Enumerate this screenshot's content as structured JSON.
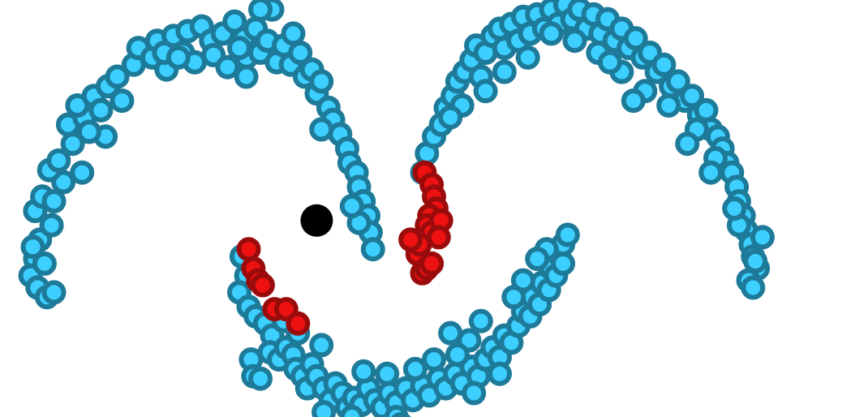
{
  "chart_data": {
    "type": "scatter",
    "title": "",
    "xlabel": "",
    "ylabel": "",
    "xlim": [
      -1.35,
      2.35
    ],
    "ylim": [
      -0.62,
      1.12
    ],
    "grid": false,
    "legend": "none",
    "axes_visible": false,
    "colors": {
      "blue_fill": "#3ccfff",
      "blue_edge": "#1e7a99",
      "red_fill": "#ee1111",
      "red_edge": "#9a0c0c",
      "black": "#000000"
    },
    "series": [
      {
        "role": "unlabeled",
        "points": [
          [
            -1.18,
            0.12
          ],
          [
            -1.2,
            0.04
          ],
          [
            -1.22,
            -0.03
          ],
          [
            -1.19,
            -0.08
          ],
          [
            -1.21,
            0.09
          ],
          [
            -1.16,
            0.02
          ],
          [
            -1.13,
            0.18
          ],
          [
            -1.15,
            -0.12
          ],
          [
            -1.2,
            0.24
          ],
          [
            -1.17,
            0.3
          ],
          [
            -1.12,
            0.28
          ],
          [
            -1.08,
            0.36
          ],
          [
            -1.14,
            0.41
          ],
          [
            -1.1,
            0.45
          ],
          [
            -1.04,
            0.52
          ],
          [
            -1.06,
            0.6
          ],
          [
            -0.99,
            0.63
          ],
          [
            -1.02,
            0.68
          ],
          [
            -0.95,
            0.72
          ],
          [
            -0.92,
            0.66
          ],
          [
            -0.89,
            0.76
          ],
          [
            -0.85,
            0.8
          ],
          [
            -0.83,
            0.7
          ],
          [
            -0.78,
            0.85
          ],
          [
            -0.76,
            0.92
          ],
          [
            -0.7,
            0.88
          ],
          [
            -0.68,
            0.95
          ],
          [
            -0.64,
            0.83
          ],
          [
            -0.61,
            0.97
          ],
          [
            -0.57,
            0.9
          ],
          [
            -0.55,
            0.99
          ],
          [
            -0.52,
            0.86
          ],
          [
            -0.49,
            1.01
          ],
          [
            -0.45,
            0.95
          ],
          [
            -0.44,
            0.89
          ],
          [
            -0.4,
            0.98
          ],
          [
            -0.38,
            0.84
          ],
          [
            -0.35,
            1.03
          ],
          [
            -0.31,
            0.96
          ],
          [
            -0.3,
            0.88
          ],
          [
            -0.26,
            1.0
          ],
          [
            -0.24,
            0.9
          ],
          [
            -0.21,
            0.95
          ],
          [
            -0.17,
            0.86
          ],
          [
            -0.14,
            0.93
          ],
          [
            -0.11,
            0.85
          ],
          [
            -0.07,
            0.9
          ],
          [
            -0.05,
            0.8
          ],
          [
            -0.02,
            0.83
          ],
          [
            0.0,
            0.73
          ],
          [
            0.02,
            0.78
          ],
          [
            0.05,
            0.67
          ],
          [
            0.07,
            0.62
          ],
          [
            0.1,
            0.56
          ],
          [
            0.13,
            0.5
          ],
          [
            0.14,
            0.44
          ],
          [
            0.17,
            0.4
          ],
          [
            0.18,
            0.34
          ],
          [
            0.2,
            0.28
          ],
          [
            0.22,
            0.22
          ],
          [
            0.23,
            0.15
          ],
          [
            0.24,
            0.08
          ],
          [
            0.18,
            0.19
          ],
          [
            0.15,
            0.26
          ],
          [
            0.02,
            0.58
          ],
          [
            -0.3,
            0.8
          ],
          [
            -0.65,
            0.9
          ],
          [
            -0.9,
            0.55
          ],
          [
            -1.0,
            0.4
          ],
          [
            -0.1,
            0.98
          ],
          [
            -0.19,
            1.08
          ],
          [
            -0.24,
            1.08
          ],
          [
            -0.33,
            0.92
          ],
          [
            -0.59,
            0.88
          ],
          [
            -0.97,
            0.57
          ],
          [
            -1.12,
            -0.1
          ],
          [
            -0.32,
            0.05
          ],
          [
            -0.3,
            -0.03
          ],
          [
            -0.33,
            -0.1
          ],
          [
            -0.29,
            -0.16
          ],
          [
            -0.26,
            -0.2
          ],
          [
            -0.22,
            -0.23
          ],
          [
            -0.19,
            -0.28
          ],
          [
            -0.2,
            -0.35
          ],
          [
            -0.16,
            -0.38
          ],
          [
            -0.13,
            -0.33
          ],
          [
            -0.1,
            -0.36
          ],
          [
            -0.09,
            -0.42
          ],
          [
            -0.06,
            -0.45
          ],
          [
            -0.04,
            -0.5
          ],
          [
            -0.02,
            -0.4
          ],
          [
            0.0,
            -0.45
          ],
          [
            0.03,
            -0.5
          ],
          [
            0.06,
            -0.55
          ],
          [
            0.08,
            -0.48
          ],
          [
            0.11,
            -0.52
          ],
          [
            0.13,
            -0.58
          ],
          [
            0.16,
            -0.54
          ],
          [
            0.19,
            -0.57
          ],
          [
            0.22,
            -0.5
          ],
          [
            0.25,
            -0.55
          ],
          [
            0.28,
            -0.58
          ],
          [
            0.31,
            -0.52
          ],
          [
            0.34,
            -0.56
          ],
          [
            0.38,
            -0.5
          ],
          [
            0.41,
            -0.55
          ],
          [
            0.45,
            -0.49
          ],
          [
            0.48,
            -0.53
          ],
          [
            0.52,
            -0.46
          ],
          [
            0.55,
            -0.5
          ],
          [
            0.59,
            -0.44
          ],
          [
            0.62,
            -0.48
          ],
          [
            0.66,
            -0.41
          ],
          [
            0.69,
            -0.45
          ],
          [
            0.72,
            -0.38
          ],
          [
            0.75,
            -0.33
          ],
          [
            0.78,
            -0.37
          ],
          [
            0.8,
            -0.28
          ],
          [
            0.83,
            -0.31
          ],
          [
            0.86,
            -0.24
          ],
          [
            0.88,
            -0.18
          ],
          [
            0.91,
            -0.2
          ],
          [
            0.92,
            -0.12
          ],
          [
            0.95,
            -0.15
          ],
          [
            0.96,
            -0.06
          ],
          [
            0.99,
            -0.09
          ],
          [
            1.0,
            0.0
          ],
          [
            1.02,
            -0.03
          ],
          [
            1.03,
            0.06
          ],
          [
            1.05,
            0.02
          ],
          [
            1.05,
            0.1
          ],
          [
            1.07,
            0.14
          ],
          [
            0.98,
            0.08
          ],
          [
            0.94,
            0.04
          ],
          [
            0.88,
            -0.05
          ],
          [
            0.84,
            -0.12
          ],
          [
            0.7,
            -0.22
          ],
          [
            0.65,
            -0.3
          ],
          [
            0.57,
            -0.27
          ],
          [
            0.6,
            -0.36
          ],
          [
            0.5,
            -0.38
          ],
          [
            0.42,
            -0.42
          ],
          [
            0.3,
            -0.44
          ],
          [
            0.2,
            -0.43
          ],
          [
            0.02,
            -0.32
          ],
          [
            -0.08,
            -0.27
          ],
          [
            -0.14,
            -0.22
          ],
          [
            -0.28,
            -0.38
          ],
          [
            -0.27,
            -0.45
          ],
          [
            -0.24,
            -0.46
          ],
          [
            0.34,
            -0.62
          ],
          [
            0.36,
            -0.65
          ],
          [
            0.15,
            -0.62
          ],
          [
            0.03,
            -0.6
          ],
          [
            0.67,
            -0.52
          ],
          [
            0.78,
            -0.44
          ],
          [
            0.45,
            0.4
          ],
          [
            0.47,
            0.48
          ],
          [
            0.5,
            0.55
          ],
          [
            0.53,
            0.6
          ],
          [
            0.55,
            0.67
          ],
          [
            0.58,
            0.72
          ],
          [
            0.6,
            0.78
          ],
          [
            0.63,
            0.82
          ],
          [
            0.66,
            0.87
          ],
          [
            0.68,
            0.93
          ],
          [
            0.72,
            0.9
          ],
          [
            0.75,
            0.97
          ],
          [
            0.78,
            1.0
          ],
          [
            0.8,
            0.92
          ],
          [
            0.83,
            1.02
          ],
          [
            0.86,
            0.95
          ],
          [
            0.88,
            1.05
          ],
          [
            0.91,
            0.98
          ],
          [
            0.94,
            1.06
          ],
          [
            0.97,
            1.0
          ],
          [
            1.0,
            1.08
          ],
          [
            1.03,
            1.02
          ],
          [
            1.06,
            1.1
          ],
          [
            1.09,
            1.04
          ],
          [
            1.12,
            1.08
          ],
          [
            1.15,
            1.0
          ],
          [
            1.18,
            1.06
          ],
          [
            1.21,
            0.98
          ],
          [
            1.24,
            1.04
          ],
          [
            1.27,
            0.95
          ],
          [
            1.3,
            1.0
          ],
          [
            1.33,
            0.92
          ],
          [
            1.36,
            0.96
          ],
          [
            1.39,
            0.88
          ],
          [
            1.42,
            0.9
          ],
          [
            1.45,
            0.82
          ],
          [
            1.48,
            0.85
          ],
          [
            1.51,
            0.76
          ],
          [
            1.54,
            0.78
          ],
          [
            1.57,
            0.7
          ],
          [
            1.6,
            0.72
          ],
          [
            1.63,
            0.64
          ],
          [
            1.66,
            0.66
          ],
          [
            1.68,
            0.58
          ],
          [
            1.71,
            0.55
          ],
          [
            1.73,
            0.5
          ],
          [
            1.75,
            0.44
          ],
          [
            1.77,
            0.4
          ],
          [
            1.79,
            0.34
          ],
          [
            1.8,
            0.28
          ],
          [
            1.82,
            0.22
          ],
          [
            1.83,
            0.16
          ],
          [
            1.85,
            0.1
          ],
          [
            1.86,
            0.05
          ],
          [
            1.88,
            0.0
          ],
          [
            1.84,
            -0.05
          ],
          [
            1.86,
            -0.08
          ],
          [
            1.87,
            0.03
          ],
          [
            1.9,
            0.13
          ],
          [
            1.8,
            0.18
          ],
          [
            1.78,
            0.25
          ],
          [
            1.7,
            0.46
          ],
          [
            1.62,
            0.58
          ],
          [
            1.5,
            0.68
          ],
          [
            1.4,
            0.74
          ],
          [
            1.3,
            0.82
          ],
          [
            1.2,
            0.9
          ],
          [
            1.1,
            0.95
          ],
          [
            1.0,
            0.98
          ],
          [
            0.9,
            0.88
          ],
          [
            0.8,
            0.82
          ],
          [
            0.7,
            0.8
          ],
          [
            0.62,
            0.68
          ],
          [
            0.57,
            0.63
          ],
          [
            1.25,
            0.86
          ],
          [
            1.35,
            0.7
          ],
          [
            1.58,
            0.52
          ],
          [
            1.68,
            0.4
          ],
          [
            0.72,
            0.74
          ]
        ]
      },
      {
        "role": "labeled",
        "points": [
          [
            -0.29,
            0.08
          ],
          [
            -0.27,
            0.0
          ],
          [
            -0.25,
            -0.05
          ],
          [
            -0.23,
            -0.07
          ],
          [
            -0.18,
            -0.17
          ],
          [
            -0.13,
            -0.17
          ],
          [
            -0.08,
            -0.23
          ],
          [
            0.46,
            0.4
          ],
          [
            0.49,
            0.35
          ],
          [
            0.5,
            0.3
          ],
          [
            0.51,
            0.25
          ],
          [
            0.48,
            0.22
          ],
          [
            0.47,
            0.18
          ],
          [
            0.49,
            0.15
          ],
          [
            0.53,
            0.2
          ],
          [
            0.52,
            0.13
          ],
          [
            0.43,
            0.06
          ],
          [
            0.45,
            -0.02
          ],
          [
            0.47,
            0.0
          ],
          [
            0.49,
            0.02
          ],
          [
            0.44,
            0.1
          ],
          [
            0.4,
            0.12
          ]
        ]
      },
      {
        "role": "query",
        "points": [
          [
            0.0,
            0.2
          ]
        ]
      }
    ]
  }
}
